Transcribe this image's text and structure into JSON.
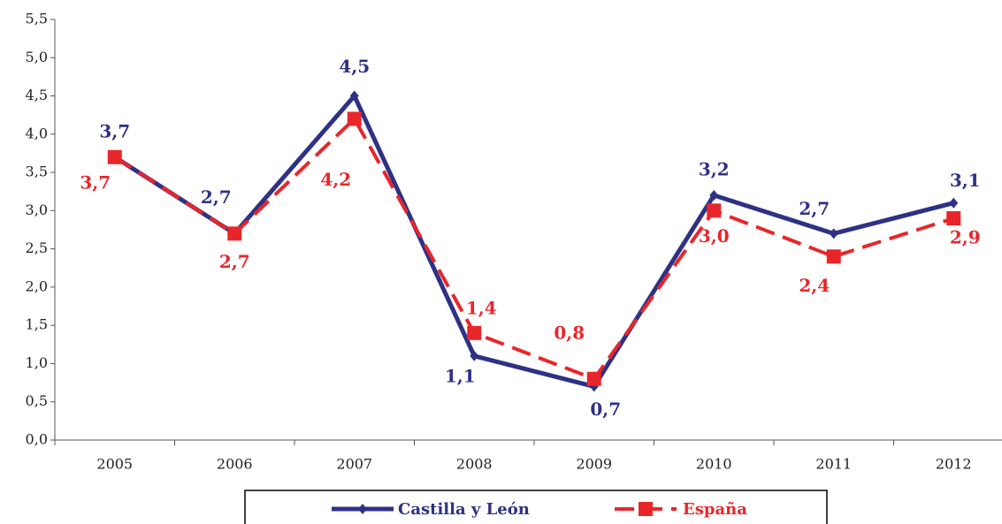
{
  "chart_data": {
    "type": "line",
    "categories": [
      "2005",
      "2006",
      "2007",
      "2008",
      "2009",
      "2010",
      "2011",
      "2012"
    ],
    "series": [
      {
        "name": "Castilla y León",
        "color": "#2e3184",
        "values": [
          3.7,
          2.7,
          4.5,
          1.1,
          0.7,
          3.2,
          2.7,
          3.1
        ],
        "value_labels": [
          "3,7",
          "2,7",
          "4,5",
          "1,1",
          "0,7",
          "3,2",
          "2,7",
          "3,1"
        ]
      },
      {
        "name": "España",
        "color": "#e8262a",
        "values": [
          3.7,
          2.7,
          4.2,
          1.4,
          0.8,
          3.0,
          2.4,
          2.9
        ],
        "value_labels": [
          "3,7",
          "2,7",
          "4,2",
          "1,4",
          "0,8",
          "3,0",
          "2,4",
          "2,9"
        ]
      }
    ],
    "ylim": [
      0,
      5.5
    ],
    "yticks": [
      {
        "value": 0,
        "label": "0,0"
      },
      {
        "value": 0.5,
        "label": "0,5"
      },
      {
        "value": 1,
        "label": "1,0"
      },
      {
        "value": 1.5,
        "label": "1,5"
      },
      {
        "value": 2,
        "label": "2,0"
      },
      {
        "value": 2.5,
        "label": "2,5"
      },
      {
        "value": 3,
        "label": "3,0"
      },
      {
        "value": 3.5,
        "label": "3,5"
      },
      {
        "value": 4,
        "label": "4,0"
      },
      {
        "value": 4.5,
        "label": "4,5"
      },
      {
        "value": 5,
        "label": "5,0"
      },
      {
        "value": 5.5,
        "label": "5,5"
      }
    ],
    "grid": false
  }
}
